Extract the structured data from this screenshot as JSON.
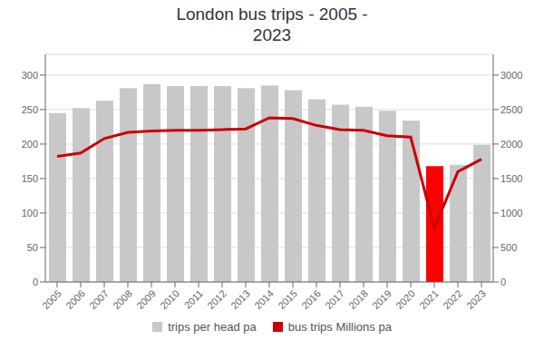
{
  "chart_data": {
    "type": "bar",
    "title": "London bus trips - 2005 -\n2023",
    "categories": [
      "2005",
      "2006",
      "2007",
      "2008",
      "2009",
      "2010",
      "2011",
      "2012",
      "2013",
      "2014",
      "2015",
      "2016",
      "2017",
      "2018",
      "2019",
      "2020",
      "2021",
      "2022",
      "2023"
    ],
    "series": [
      {
        "name": "trips per head pa",
        "type": "bar",
        "color": "#c8c8c8",
        "colors": [
          "#c8c8c8",
          "#c8c8c8",
          "#c8c8c8",
          "#c8c8c8",
          "#c8c8c8",
          "#c8c8c8",
          "#c8c8c8",
          "#c8c8c8",
          "#c8c8c8",
          "#c8c8c8",
          "#c8c8c8",
          "#c8c8c8",
          "#c8c8c8",
          "#c8c8c8",
          "#c8c8c8",
          "#c8c8c8",
          "#ff0000",
          "#c8c8c8",
          "#c8c8c8"
        ],
        "values": [
          245,
          252,
          263,
          281,
          287,
          284,
          284,
          284,
          281,
          285,
          278,
          265,
          257,
          254,
          248,
          234,
          168,
          170,
          199
        ]
      },
      {
        "name": "bus trips Millions pa",
        "type": "line",
        "color": "#cc0000",
        "axis": "y2",
        "values": [
          1820,
          1870,
          2080,
          2170,
          2190,
          2200,
          2200,
          2210,
          2220,
          2380,
          2370,
          2270,
          2210,
          2200,
          2120,
          2100,
          780,
          1600,
          1780
        ]
      }
    ],
    "ylim": [
      0,
      330
    ],
    "yticks": [
      0,
      50,
      100,
      150,
      200,
      250,
      300
    ],
    "y2lim": [
      0,
      3300
    ],
    "y2ticks": [
      0,
      500,
      1000,
      1500,
      2000,
      2500,
      3000
    ],
    "grid": true,
    "legend": "bottom"
  }
}
